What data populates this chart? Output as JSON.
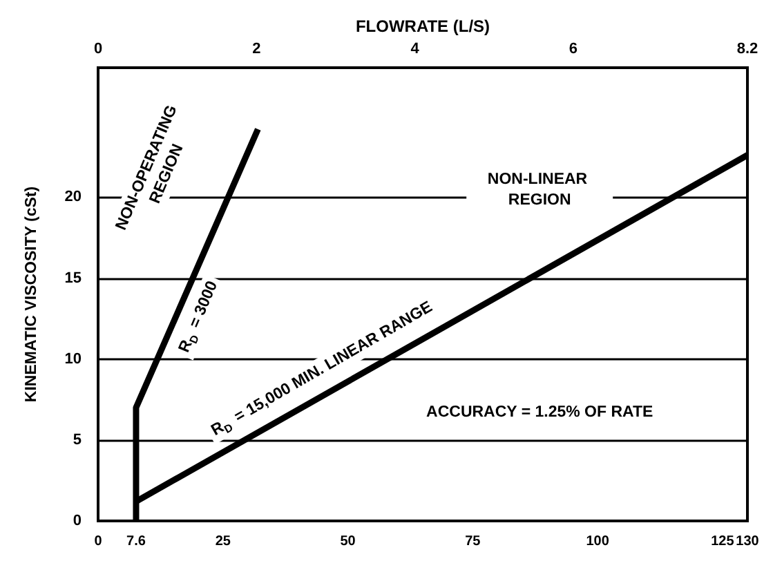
{
  "chart_data": {
    "type": "line",
    "x2label": "FLOWRATE (L/S)",
    "ylabel": "KINEMATIC VISCOSITY (cSt)",
    "series": [
      {
        "color": "#000000",
        "x": [
          7.6,
          7.6,
          32
        ],
        "values": [
          0,
          7,
          24.2
        ]
      },
      {
        "color": "#000000",
        "x": [
          7.6,
          130
        ],
        "values": [
          1.2,
          22.6
        ]
      }
    ],
    "xlim": [
      0,
      130
    ],
    "xticks": [
      0,
      7.6,
      25,
      50,
      75,
      100,
      125,
      130
    ],
    "x2lim": [
      0,
      8.2
    ],
    "x2ticks": [
      0,
      2,
      4,
      6,
      8.2
    ],
    "ylim": [
      0,
      28
    ],
    "yticks": [
      0,
      5,
      10,
      15,
      20
    ],
    "grid": "y",
    "marker": "none",
    "line_style": "solid",
    "annotations": [
      "NON-OPERATING REGION",
      "R$_{D}$ = 3000",
      "R$_{D}$ = 15,000 MIN. LINEAR RANGE",
      "NON-LINEAR REGION",
      "ACCURACY = 1.25% OF RATE"
    ]
  }
}
